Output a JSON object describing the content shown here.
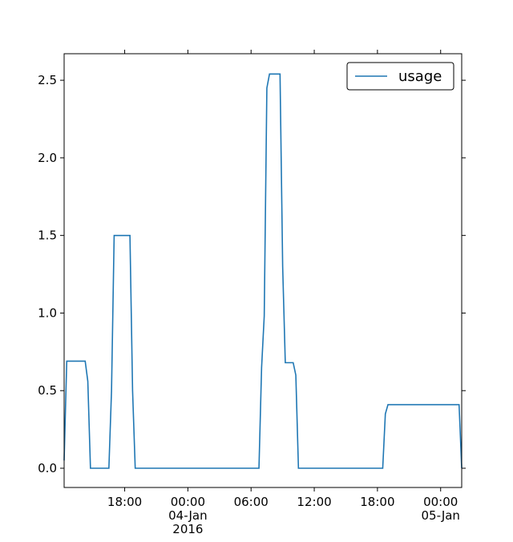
{
  "chart_data": {
    "type": "line",
    "x": [
      "2016-01-03 12:15",
      "2016-01-03 12:30",
      "2016-01-03 14:15",
      "2016-01-03 14:30",
      "2016-01-03 14:45",
      "2016-01-03 16:30",
      "2016-01-03 16:45",
      "2016-01-03 17:00",
      "2016-01-03 18:30",
      "2016-01-03 18:45",
      "2016-01-03 19:00",
      "2016-01-04 06:45",
      "2016-01-04 07:00",
      "2016-01-04 07:15",
      "2016-01-04 07:30",
      "2016-01-04 07:45",
      "2016-01-04 08:45",
      "2016-01-04 09:00",
      "2016-01-04 09:15",
      "2016-01-04 10:00",
      "2016-01-04 10:15",
      "2016-01-04 10:30",
      "2016-01-04 18:30",
      "2016-01-04 18:45",
      "2016-01-04 19:00",
      "2016-01-05 01:45",
      "2016-01-05 02:00"
    ],
    "series": [
      {
        "name": "usage",
        "color": "#1f77b4",
        "values": [
          0.05,
          0.69,
          0.69,
          0.56,
          0.0,
          0.0,
          0.5,
          1.5,
          1.5,
          0.5,
          0.0,
          0.0,
          0.65,
          0.98,
          2.45,
          2.54,
          2.54,
          1.3,
          0.68,
          0.68,
          0.6,
          0.0,
          0.0,
          0.35,
          0.41,
          0.41,
          0.0
        ]
      }
    ],
    "xlim": [
      "2016-01-03 12:15",
      "2016-01-05 02:00"
    ],
    "xticks": [
      {
        "value": "2016-01-03 18:00",
        "label": "18:00"
      },
      {
        "value": "2016-01-04 00:00",
        "label": "00:00\n04-Jan\n2016"
      },
      {
        "value": "2016-01-04 06:00",
        "label": "06:00"
      },
      {
        "value": "2016-01-04 12:00",
        "label": "12:00"
      },
      {
        "value": "2016-01-04 18:00",
        "label": "18:00"
      },
      {
        "value": "2016-01-05 00:00",
        "label": "00:00\n05-Jan"
      }
    ],
    "ylim": [
      -0.124,
      2.671
    ],
    "yticks": [
      {
        "value": 0,
        "label": "0.0"
      },
      0.5,
      {
        "value": 1,
        "label": "1.0"
      },
      1.5,
      {
        "value": 2,
        "label": "2.0"
      },
      2.5
    ],
    "legend": "upper right"
  }
}
